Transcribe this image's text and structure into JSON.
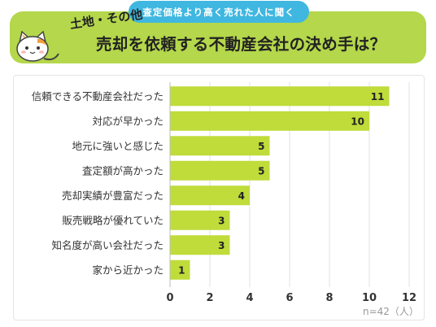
{
  "header": {
    "pill_text": "査定価格より高く売れた人に聞く",
    "tag": "土地・その他",
    "title": "売却を依頼する不動産会社の決め手は？"
  },
  "colors": {
    "header_bg": "#b4d74b",
    "pill_bg": "#3fb7e0",
    "bar": "#bfdc3a",
    "text": "#222222"
  },
  "chart_data": {
    "type": "bar",
    "orientation": "horizontal",
    "categories": [
      "信頼できる不動産会社だった",
      "対応が早かった",
      "地元に強いと感じた",
      "査定額が高かった",
      "売却実績が豊富だった",
      "販売戦略が優れていた",
      "知名度が高い会社だった",
      "家から近かった"
    ],
    "values": [
      11,
      10,
      5,
      5,
      4,
      3,
      3,
      1
    ],
    "xlim": [
      0,
      12
    ],
    "xticks": [
      0,
      2,
      4,
      6,
      8,
      10,
      12
    ],
    "grid": true,
    "note": "n=42（人）"
  }
}
